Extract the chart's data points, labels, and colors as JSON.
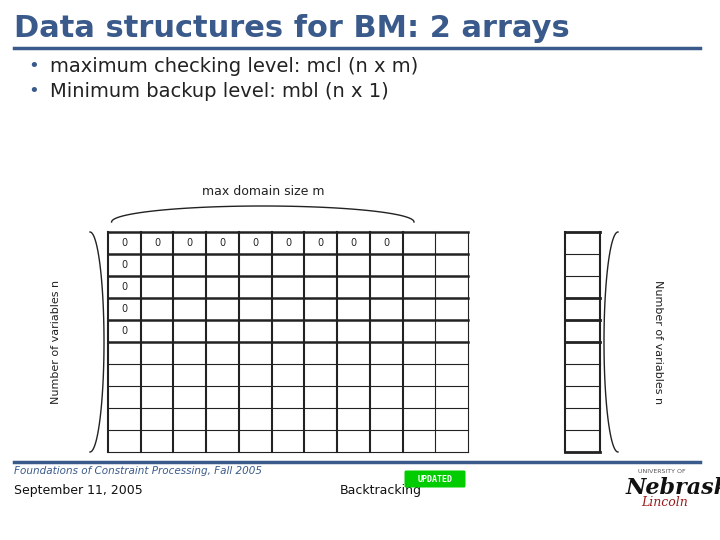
{
  "title": "Data structures for BM: 2 arrays",
  "title_color": "#3a5a8c",
  "title_fontsize": 22,
  "background_color": "#ffffff",
  "bullet1": "maximum checking level: mcl (n x m)",
  "bullet2": "Minimum backup level: mbl (n x 1)",
  "bullet_color": "#3a5a8c",
  "bullet_fontsize": 14,
  "matrix_label_top": "max domain size m",
  "matrix_ylabel": "Number of variables n",
  "matrix2_ylabel": "Number of variables n",
  "footer_left": "Foundations of Constraint Processing, Fall 2005",
  "footer_date": "September 11, 2005",
  "footer_title": "Backtracking",
  "separator_color": "#3a5a8c",
  "grid_color": "#222222",
  "updated_color": "#00cc00",
  "nebraska_main": "#111111",
  "nebraska_lincoln": "#9b1b1b"
}
